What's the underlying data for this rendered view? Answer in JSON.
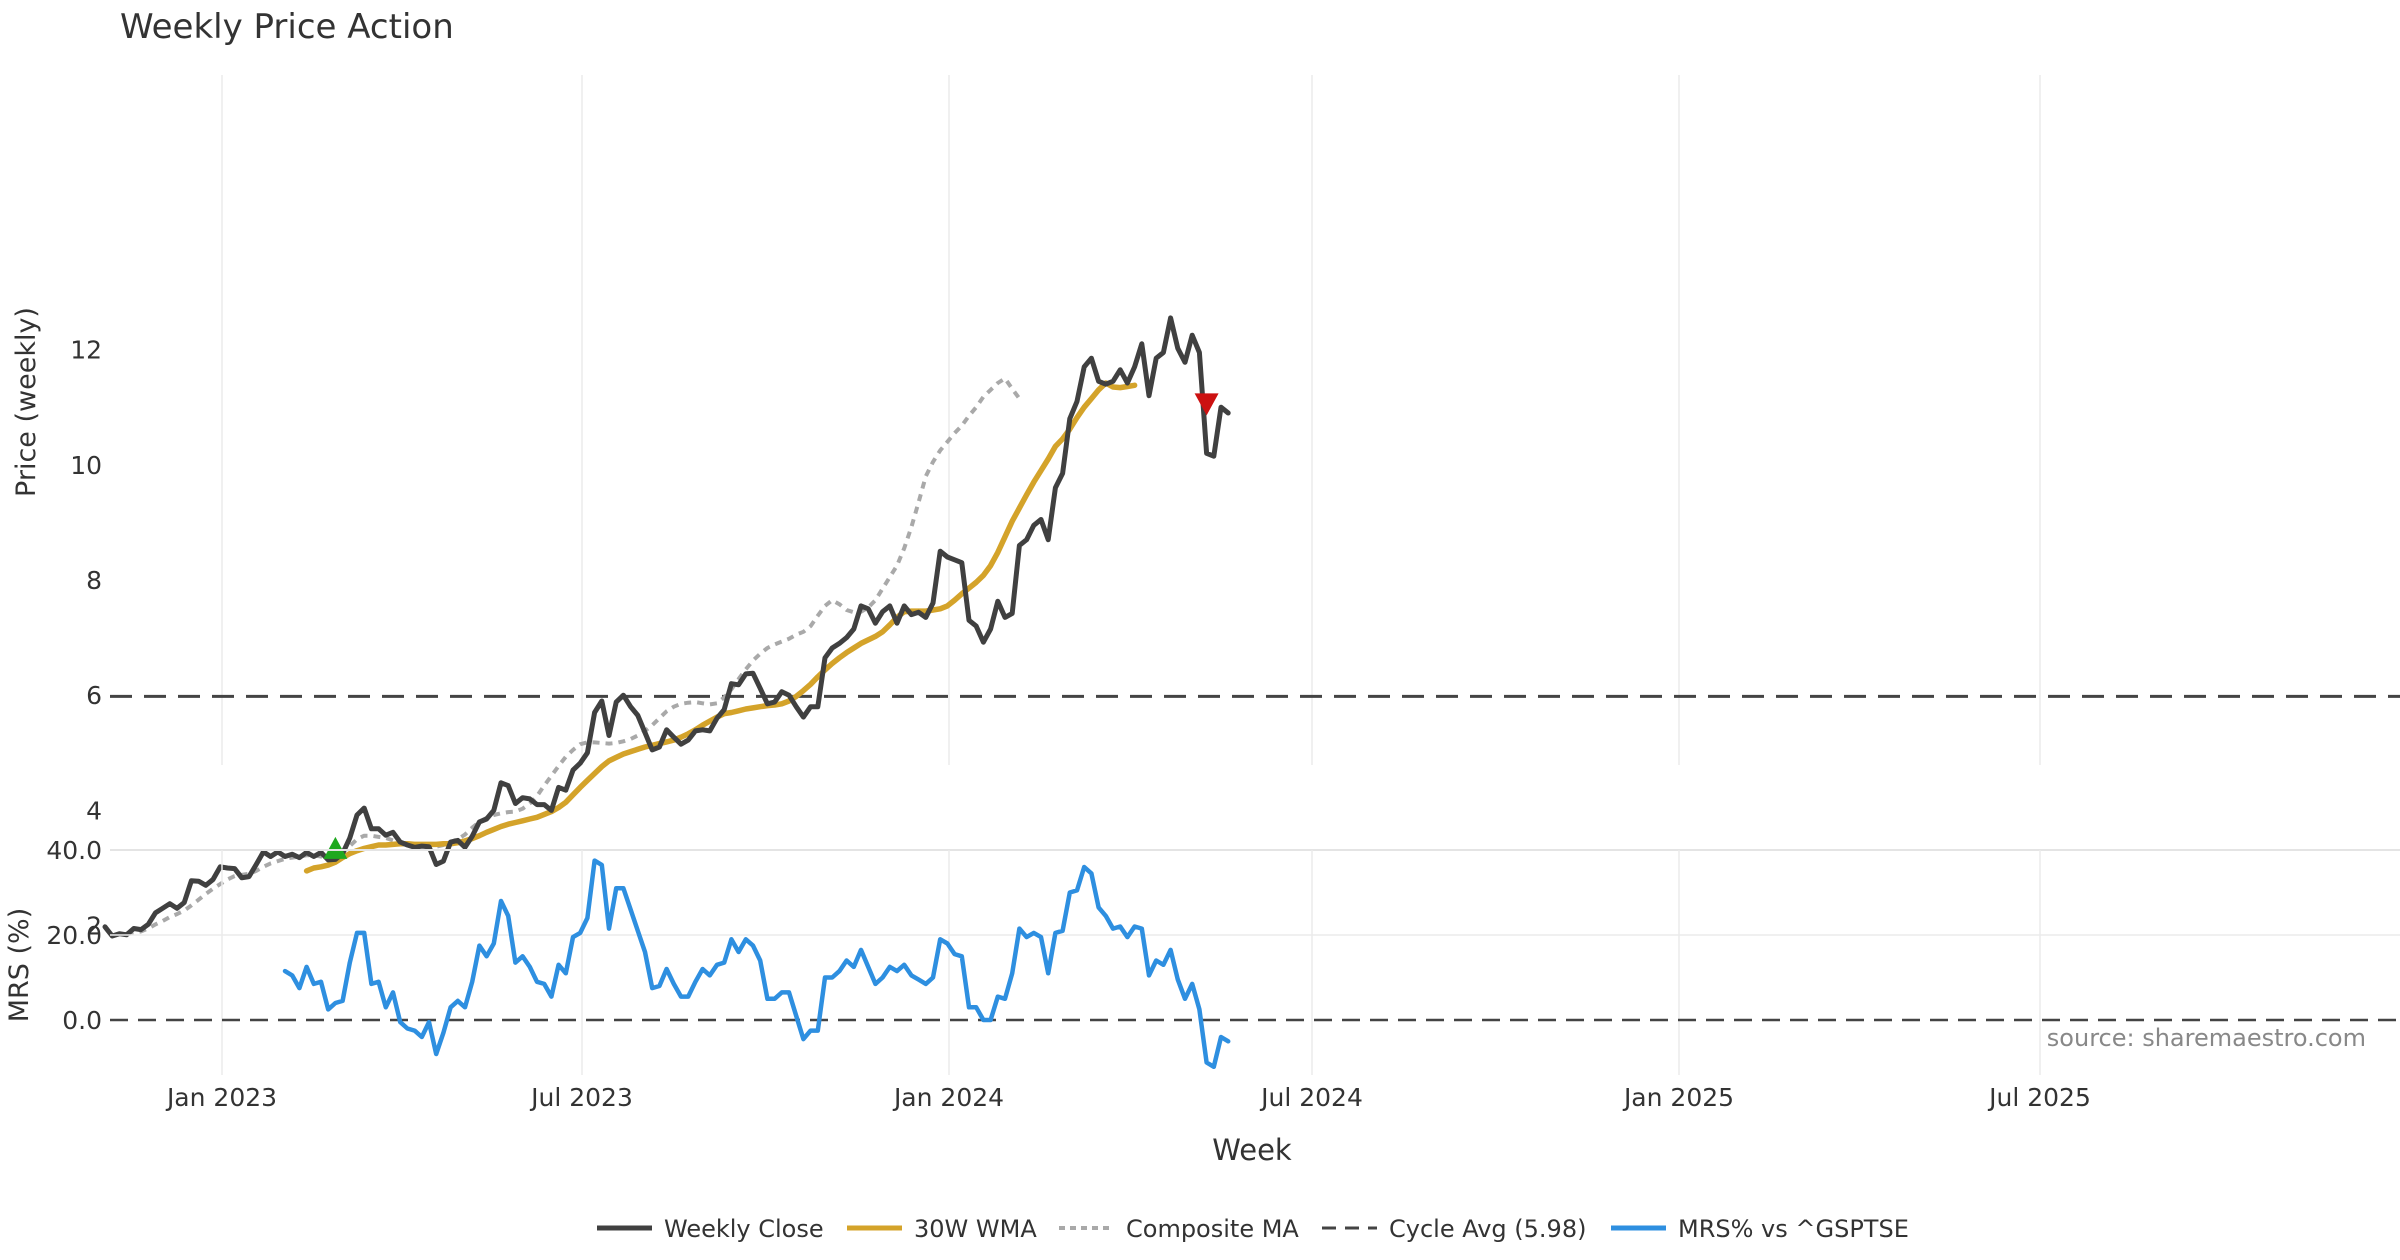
{
  "colors": {
    "close": "#404040",
    "wma": "#d4a32a",
    "composite": "#a9a9a9",
    "cycle": "#444444",
    "mrs": "#2e8fe0",
    "buy": "#1fa81f",
    "sell": "#cc1111",
    "grid": "#ebebeb",
    "text": "#333333",
    "source": "#888888"
  },
  "chart_data": {
    "type": "line",
    "title": "Weekly Price Action",
    "xlabel": "Week",
    "source": "source: sharemaestro.com",
    "x_ticks": [
      "Jan 2023",
      "Jul 2023",
      "Jan 2024",
      "Jul 2024",
      "Jan 2025",
      "Jul 2025"
    ],
    "price_panel": {
      "ylabel": "Price (weekly)",
      "ylim": [
        1.3,
        13.3
      ],
      "y_ticks": [
        "2",
        "4",
        "6",
        "8",
        "10",
        "12"
      ],
      "cycle_avg": 5.98,
      "buy_signal": {
        "week": 32,
        "price": 3.35
      },
      "sell_signal": {
        "week": 153,
        "price": 11.05
      }
    },
    "mrs_panel": {
      "ylabel": "MRS (%)",
      "ylim": [
        -15,
        42
      ],
      "y_ticks": [
        "40.0",
        "20.0",
        "0.0"
      ],
      "zero_line": 0
    },
    "legend": [
      "Weekly Close",
      "30W WMA",
      "Composite MA",
      "Cycle Avg (5.98)",
      "MRS% vs ^GSPTSE"
    ],
    "series": [
      {
        "name": "Weekly Close",
        "start_week": 0,
        "values": [
          1.98,
          1.82,
          1.86,
          1.84,
          1.95,
          1.93,
          2.02,
          2.22,
          2.3,
          2.38,
          2.3,
          2.4,
          2.78,
          2.77,
          2.7,
          2.8,
          3.02,
          3.0,
          2.99,
          2.83,
          2.85,
          3.06,
          3.28,
          3.2,
          3.28,
          3.2,
          3.24,
          3.18,
          3.27,
          3.2,
          3.27,
          3.14,
          3.15,
          3.25,
          3.52,
          3.92,
          4.04,
          3.68,
          3.68,
          3.57,
          3.62,
          3.45,
          3.4,
          3.36,
          3.38,
          3.37,
          3.06,
          3.12,
          3.45,
          3.48,
          3.36,
          3.55,
          3.8,
          3.85,
          4.0,
          4.48,
          4.43,
          4.12,
          4.22,
          4.2,
          4.1,
          4.1,
          4.0,
          4.4,
          4.35,
          4.7,
          4.82,
          5.0,
          5.7,
          5.9,
          5.3,
          5.88,
          6.0,
          5.8,
          5.65,
          5.35,
          5.05,
          5.1,
          5.4,
          5.27,
          5.15,
          5.22,
          5.38,
          5.4,
          5.38,
          5.6,
          5.75,
          6.2,
          6.18,
          6.37,
          6.38,
          6.12,
          5.85,
          5.88,
          6.06,
          6.0,
          5.8,
          5.62,
          5.8,
          5.8,
          6.65,
          6.82,
          6.9,
          7.0,
          7.15,
          7.55,
          7.5,
          7.25,
          7.45,
          7.55,
          7.25,
          7.55,
          7.4,
          7.44,
          7.35,
          7.6,
          8.5,
          8.4,
          8.35,
          8.3,
          7.3,
          7.2,
          6.92,
          7.15,
          7.63,
          7.35,
          7.42,
          8.6,
          8.7,
          8.95,
          9.05,
          8.7,
          9.6,
          9.85,
          10.8,
          11.1,
          11.7,
          11.85,
          11.45,
          11.4,
          11.45,
          11.65,
          11.42,
          11.7,
          12.1,
          11.2,
          11.85,
          11.95,
          12.55,
          12.02,
          11.78,
          12.25,
          11.95,
          10.2,
          10.15,
          11.0,
          10.9
        ]
      },
      {
        "name": "30W WMA",
        "start_week": 28,
        "values": [
          2.95,
          3.0,
          3.02,
          3.05,
          3.1,
          3.18,
          3.25,
          3.3,
          3.34,
          3.37,
          3.4,
          3.4,
          3.41,
          3.42,
          3.42,
          3.41,
          3.41,
          3.41,
          3.41,
          3.42,
          3.42,
          3.44,
          3.47,
          3.51,
          3.56,
          3.62,
          3.67,
          3.72,
          3.76,
          3.79,
          3.82,
          3.85,
          3.88,
          3.93,
          3.98,
          4.05,
          4.14,
          4.27,
          4.4,
          4.52,
          4.64,
          4.76,
          4.86,
          4.92,
          4.98,
          5.02,
          5.06,
          5.1,
          5.13,
          5.16,
          5.19,
          5.22,
          5.27,
          5.33,
          5.4,
          5.48,
          5.55,
          5.62,
          5.68,
          5.7,
          5.73,
          5.76,
          5.78,
          5.8,
          5.82,
          5.83,
          5.85,
          5.9,
          5.98,
          6.08,
          6.19,
          6.32,
          6.44,
          6.55,
          6.65,
          6.74,
          6.82,
          6.9,
          6.96,
          7.02,
          7.1,
          7.22,
          7.35,
          7.45,
          7.46,
          7.46,
          7.46,
          7.48,
          7.5,
          7.55,
          7.65,
          7.76,
          7.86,
          7.96,
          8.08,
          8.25,
          8.48,
          8.75,
          9.02,
          9.25,
          9.48,
          9.7,
          9.9,
          10.1,
          10.32,
          10.45,
          10.62,
          10.82,
          11.0,
          11.15,
          11.3,
          11.42,
          11.35,
          11.34,
          11.36,
          11.38
        ]
      },
      {
        "name": "Composite MA",
        "start_week": 3,
        "values": [
          1.85,
          1.87,
          1.9,
          1.95,
          2.02,
          2.08,
          2.15,
          2.2,
          2.26,
          2.35,
          2.45,
          2.55,
          2.64,
          2.72,
          2.8,
          2.86,
          2.88,
          2.9,
          2.95,
          3.02,
          3.08,
          3.12,
          3.16,
          3.18,
          3.2,
          3.22,
          3.22,
          3.2,
          3.2,
          3.22,
          3.28,
          3.38,
          3.5,
          3.56,
          3.56,
          3.54,
          3.52,
          3.48,
          3.45,
          3.42,
          3.4,
          3.38,
          3.36,
          3.37,
          3.4,
          3.45,
          3.5,
          3.58,
          3.7,
          3.8,
          3.87,
          3.92,
          3.95,
          3.97,
          3.98,
          4.03,
          4.12,
          4.25,
          4.43,
          4.6,
          4.77,
          4.93,
          5.05,
          5.15,
          5.18,
          5.18,
          5.17,
          5.16,
          5.17,
          5.2,
          5.24,
          5.3,
          5.38,
          5.48,
          5.6,
          5.72,
          5.8,
          5.85,
          5.87,
          5.88,
          5.86,
          5.84,
          5.86,
          5.96,
          6.1,
          6.28,
          6.45,
          6.6,
          6.72,
          6.82,
          6.88,
          6.93,
          6.98,
          7.05,
          7.1,
          7.2,
          7.38,
          7.55,
          7.65,
          7.58,
          7.48,
          7.44,
          7.45,
          7.52,
          7.65,
          7.85,
          8.05,
          8.25,
          8.55,
          8.92,
          9.35,
          9.8,
          10.05,
          10.25,
          10.4,
          10.55,
          10.68,
          10.85,
          11.0,
          11.18,
          11.3,
          11.42,
          11.5,
          11.32,
          11.15
        ]
      },
      {
        "name": "MRS% vs ^GSPTSE",
        "start_week": 25,
        "values": [
          11.5,
          10.5,
          7.5,
          12.5,
          8.5,
          9.0,
          2.5,
          4.0,
          4.5,
          13.5,
          20.5,
          20.5,
          8.5,
          9.0,
          3.0,
          6.5,
          -0.5,
          -2.0,
          -2.5,
          -4.0,
          -0.5,
          -8.0,
          -3.0,
          3.0,
          4.5,
          3.0,
          9.0,
          17.5,
          15.0,
          18.0,
          28.0,
          24.5,
          13.5,
          15.0,
          12.5,
          9.0,
          8.5,
          5.5,
          13.0,
          11.0,
          19.5,
          20.5,
          24.0,
          37.5,
          36.5,
          21.5,
          31.0,
          31.0,
          26.0,
          21.0,
          16.0,
          7.5,
          8.0,
          12.0,
          8.5,
          5.5,
          5.5,
          9.0,
          12.0,
          10.5,
          13.0,
          13.5,
          19.0,
          16.0,
          19.0,
          17.5,
          14.0,
          5.0,
          5.0,
          6.5,
          6.5,
          1.0,
          -4.5,
          -2.5,
          -2.5,
          10.0,
          10.0,
          11.5,
          14.0,
          12.5,
          16.5,
          12.5,
          8.5,
          10.0,
          12.5,
          11.5,
          13.0,
          10.5,
          9.5,
          8.5,
          10.0,
          19.0,
          18.0,
          15.5,
          15.0,
          3.0,
          3.0,
          0.0,
          0.0,
          5.5,
          5.0,
          11.0,
          21.5,
          19.5,
          20.5,
          19.5,
          11.0,
          20.5,
          21.0,
          30.0,
          30.5,
          36.0,
          34.5,
          26.5,
          24.5,
          21.5,
          22.0,
          19.5,
          22.0,
          21.5,
          10.5,
          14.0,
          13.0,
          16.5,
          9.5,
          5.0,
          8.5,
          2.5,
          -10.0,
          -11.0,
          -4.0,
          -5.0
        ]
      }
    ]
  }
}
